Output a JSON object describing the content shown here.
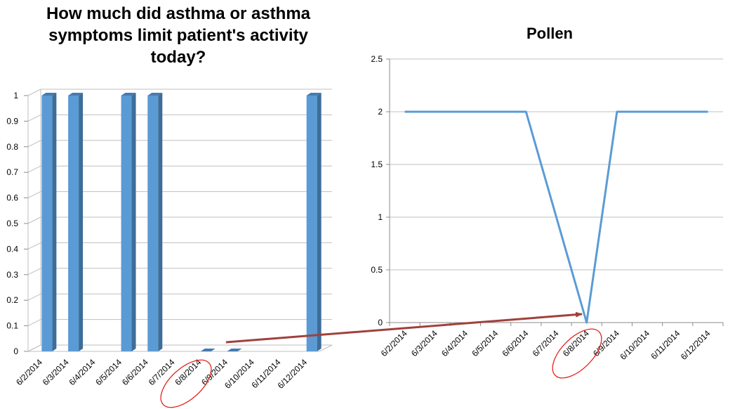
{
  "chart_data": [
    {
      "type": "bar",
      "title_lines": [
        "How much did asthma or asthma",
        "symptoms limit patient's activity",
        "today?"
      ],
      "categories": [
        "6/2/2014",
        "6/3/2014",
        "6/4/2014",
        "6/5/2014",
        "6/6/2014",
        "6/7/2014",
        "6/8/2014",
        "6/9/2014",
        "6/10/2014",
        "6/11/2014",
        "6/12/2014"
      ],
      "values": [
        1,
        1,
        null,
        1,
        1,
        null,
        0,
        0,
        null,
        null,
        1
      ],
      "ylim": [
        0,
        1
      ],
      "yticks": [
        "0",
        "0.1",
        "0.2",
        "0.3",
        "0.4",
        "0.5",
        "0.6",
        "0.7",
        "0.8",
        "0.9",
        "1"
      ],
      "grid": true,
      "style": "3d-column",
      "colors": {
        "bar_front": "#5b9bd5",
        "bar_side": "#3d6d99",
        "bar_top": "#457bb0"
      },
      "highlighted_category": "6/8/2014"
    },
    {
      "type": "line",
      "title": "Pollen",
      "categories": [
        "6/2/2014",
        "6/3/2014",
        "6/4/2014",
        "6/5/2014",
        "6/6/2014",
        "6/7/2014",
        "6/8/2014",
        "6/9/2014",
        "6/10/2014",
        "6/11/2014",
        "6/12/2014"
      ],
      "values": [
        2,
        2,
        2,
        2,
        2,
        1,
        0,
        2,
        2,
        2,
        2
      ],
      "ylim": [
        0,
        2.5
      ],
      "yticks": [
        "0",
        "0.5",
        "1",
        "1.5",
        "2",
        "2.5"
      ],
      "grid": true,
      "colors": {
        "line": "#5b9bd5"
      },
      "highlighted_category": "6/8/2014"
    }
  ],
  "annotation": {
    "type": "arrow",
    "from": "bar chart 6/8/2014",
    "to": "pollen chart 6/8/2014 minimum",
    "colors": {
      "arrow": "#a0413c",
      "circle": "#e3241b"
    }
  }
}
